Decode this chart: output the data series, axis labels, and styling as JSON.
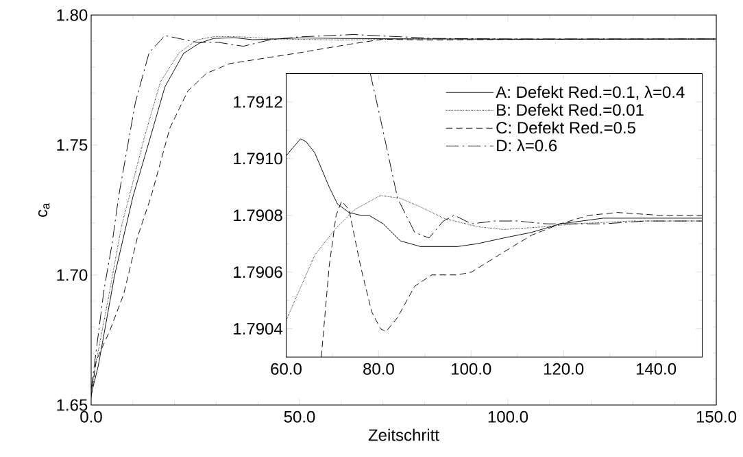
{
  "chart_data": [
    {
      "type": "line",
      "xlabel": "Zeitschritt",
      "ylabel": "c$_{a}$",
      "xlim": [
        0,
        150
      ],
      "ylim": [
        1.65,
        1.8
      ],
      "xticks": [
        {
          "value": 0,
          "label": "0.0"
        },
        {
          "value": 50,
          "label": "50.0"
        },
        {
          "value": 100,
          "label": "100.0"
        },
        {
          "value": 150,
          "label": "150.0"
        }
      ],
      "yticks": [
        {
          "value": 1.65,
          "label": "1.65"
        },
        {
          "value": 1.7,
          "label": "1.70"
        },
        {
          "value": 1.75,
          "label": "1.75"
        },
        {
          "value": 1.8,
          "label": "1.80"
        }
      ],
      "series": [
        {
          "color": "#000000",
          "line_style": "solid",
          "x": [
            0,
            1.7,
            5.6,
            10,
            13.9,
            17.7,
            22.2,
            26,
            29.4,
            34.3,
            38.8,
            44.3,
            50,
            60,
            70,
            80,
            100,
            150
          ],
          "values": [
            1.654,
            1.665,
            1.6997,
            1.73,
            1.7513,
            1.7724,
            1.7853,
            1.7892,
            1.791,
            1.7913,
            1.7905,
            1.7908,
            1.7912,
            1.791,
            1.7909,
            1.7908,
            1.7907,
            1.7908
          ]
        },
        {
          "color": "#000000",
          "line_style": "dotted",
          "x": [
            0,
            1,
            4,
            7.3,
            8.9,
            12.8,
            16.6,
            21.1,
            25.5,
            29.9,
            36,
            44.3,
            60,
            80,
            100,
            150
          ],
          "values": [
            1.655,
            1.665,
            1.69,
            1.719,
            1.7287,
            1.7532,
            1.7742,
            1.7855,
            1.7905,
            1.7918,
            1.7916,
            1.7908,
            1.7904,
            1.7909,
            1.7908,
            1.7907
          ]
        },
        {
          "color": "#000000",
          "line_style": "dashed",
          "x": [
            0,
            1.2,
            4.5,
            7.8,
            11.1,
            14.4,
            18.9,
            23.2,
            27.7,
            33.2,
            41.5,
            50,
            61.7,
            70,
            80,
            100,
            150
          ],
          "values": [
            1.653,
            1.667,
            1.6787,
            1.6926,
            1.7145,
            1.7303,
            1.7566,
            1.7708,
            1.7776,
            1.7813,
            1.7834,
            1.7855,
            1.7887,
            1.7907,
            1.7904,
            1.7906,
            1.7908
          ]
        },
        {
          "color": "#000000",
          "line_style": "dashdot",
          "x": [
            0,
            1.2,
            3.1,
            5,
            6.6,
            10.6,
            13.9,
            17.7,
            25.5,
            30.5,
            36.5,
            43,
            50,
            63,
            72,
            82.5,
            100,
            150
          ],
          "values": [
            1.656,
            1.6708,
            1.6945,
            1.7118,
            1.7303,
            1.7663,
            1.7855,
            1.7921,
            1.7895,
            1.7895,
            1.788,
            1.7905,
            1.7916,
            1.7925,
            1.7918,
            1.791,
            1.7908,
            1.7908
          ]
        }
      ]
    },
    {
      "type": "line",
      "legend": "top right",
      "xlim": [
        60,
        150
      ],
      "ylim": [
        1.7903,
        1.7913
      ],
      "xticks": [
        {
          "value": 60,
          "label": "60.0"
        },
        {
          "value": 80,
          "label": "80.0"
        },
        {
          "value": 100,
          "label": "100.0"
        },
        {
          "value": 120,
          "label": "120.0"
        },
        {
          "value": 140,
          "label": "140.0"
        }
      ],
      "yticks": [
        {
          "value": 1.7904,
          "label": "1.7904"
        },
        {
          "value": 1.7906,
          "label": "1.7906"
        },
        {
          "value": 1.7908,
          "label": "1.7908"
        },
        {
          "value": 1.791,
          "label": "1.7910"
        },
        {
          "value": 1.7912,
          "label": "1.7912"
        }
      ],
      "series": [
        {
          "name": "A: Defekt Red.=0.1, λ=0.4",
          "color": "#000000",
          "line_style": "solid",
          "x": [
            60,
            63.1,
            64.3,
            66.2,
            69.3,
            71.1,
            73.6,
            76.1,
            77.9,
            81,
            84.7,
            89,
            92.1,
            97.1,
            101.4,
            107,
            113.1,
            119.3,
            128.6,
            137.8,
            150
          ],
          "values": [
            1.79101,
            1.79107,
            1.79106,
            1.79102,
            1.7909,
            1.79084,
            1.79081,
            1.7908,
            1.7908,
            1.79077,
            1.79071,
            1.79069,
            1.79069,
            1.79069,
            1.7907,
            1.79072,
            1.79074,
            1.79077,
            1.79079,
            1.79079,
            1.79079
          ]
        },
        {
          "name": "B: Defekt Red.=0.01",
          "color": "#000000",
          "line_style": "dotted",
          "x": [
            60,
            66.2,
            70.5,
            74.8,
            80.4,
            84.7,
            89,
            94,
            101.4,
            107,
            116.2,
            122.4,
            134.7,
            150
          ],
          "values": [
            1.79043,
            1.79066,
            1.79075,
            1.79082,
            1.79087,
            1.79086,
            1.79083,
            1.79079,
            1.79076,
            1.79075,
            1.79076,
            1.79077,
            1.79078,
            1.79078
          ]
        },
        {
          "name": "C: Defekt Red.=0.5",
          "color": "#000000",
          "line_style": "dashed",
          "x": [
            67.6,
            69.3,
            70.8,
            72,
            73.6,
            76.1,
            78.5,
            80.4,
            81.6,
            84.1,
            87.8,
            91.5,
            97.1,
            100.1,
            107,
            113.1,
            119.3,
            125.5,
            131.6,
            140.9,
            150
          ],
          "values": [
            1.7903,
            1.79062,
            1.7908,
            1.79085,
            1.79082,
            1.79062,
            1.79046,
            1.7904,
            1.79039,
            1.79044,
            1.79055,
            1.79059,
            1.79059,
            1.7906,
            1.79067,
            1.79073,
            1.79077,
            1.7908,
            1.79081,
            1.7908,
            1.7908
          ]
        },
        {
          "name": "D: λ=0.6",
          "color": "#000000",
          "line_style": "dashdot",
          "x": [
            78.2,
            80.4,
            84.1,
            87.8,
            90.9,
            94,
            96.4,
            100.1,
            105.1,
            110,
            116.2,
            122.4,
            128.6,
            137.8,
            150
          ],
          "values": [
            1.7913,
            1.79114,
            1.79086,
            1.79074,
            1.79072,
            1.79078,
            1.7908,
            1.79077,
            1.79078,
            1.79078,
            1.79077,
            1.79077,
            1.79077,
            1.79078,
            1.79078
          ]
        }
      ]
    }
  ]
}
